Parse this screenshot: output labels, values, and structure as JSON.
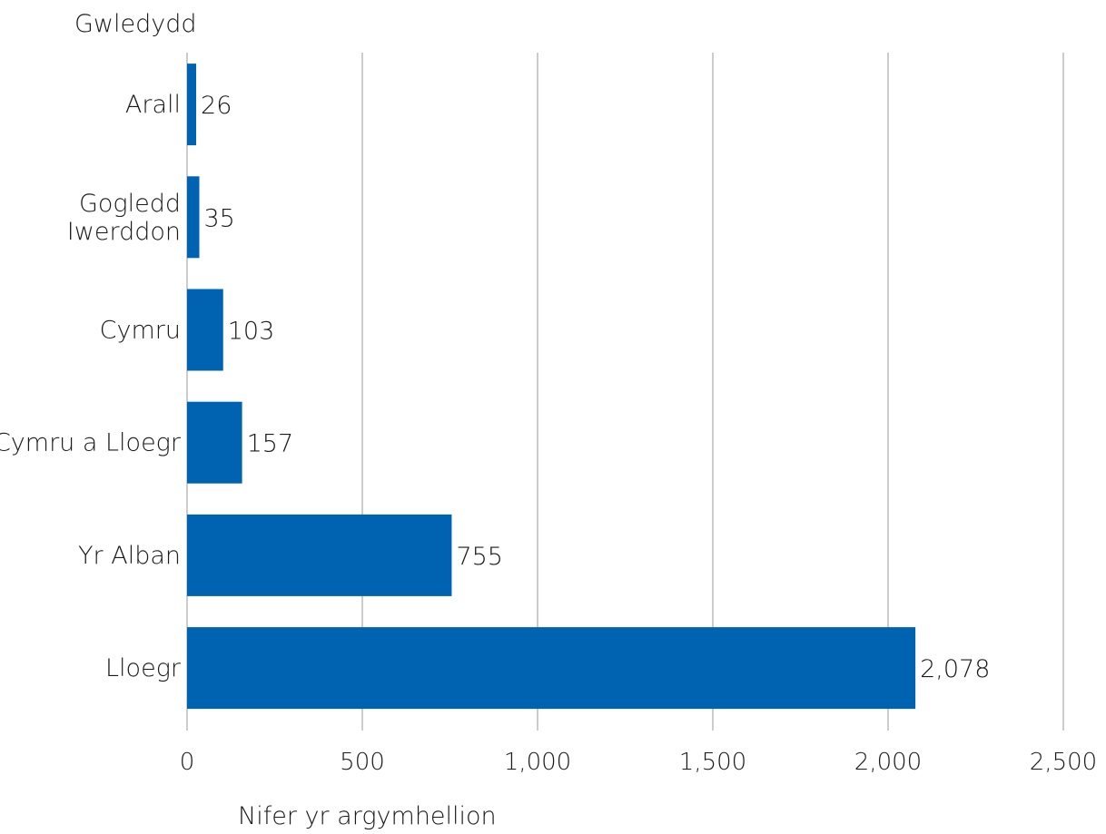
{
  "chart_data": {
    "type": "bar",
    "orientation": "horizontal",
    "ylabel": "Gwledydd",
    "xlabel": "Nifer yr argymhellion",
    "categories": [
      "Arall",
      "Gogledd Iwerddon",
      "Cymru",
      "Cymru a Lloegr",
      "Yr Alban",
      "Lloegr"
    ],
    "category_lines": [
      [
        "Arall"
      ],
      [
        "Gogledd",
        "Iwerddon"
      ],
      [
        "Cymru"
      ],
      [
        "Cymru a Lloegr"
      ],
      [
        "Yr Alban"
      ],
      [
        "Lloegr"
      ]
    ],
    "values": [
      26,
      35,
      103,
      157,
      755,
      2078
    ],
    "data_labels": [
      "26",
      "35",
      "103",
      "157",
      "755",
      "2,078"
    ],
    "xlim": [
      0,
      2500
    ],
    "xticks": [
      0,
      500,
      1000,
      1500,
      2000,
      2500
    ],
    "xtick_labels": [
      "0",
      "500",
      "1,000",
      "1,500",
      "2,000",
      "2,500"
    ],
    "grid": "vertical",
    "colors": {
      "bar": "#0063B1",
      "grid": "#CCCCCC",
      "text": "#1A1A1A"
    }
  }
}
